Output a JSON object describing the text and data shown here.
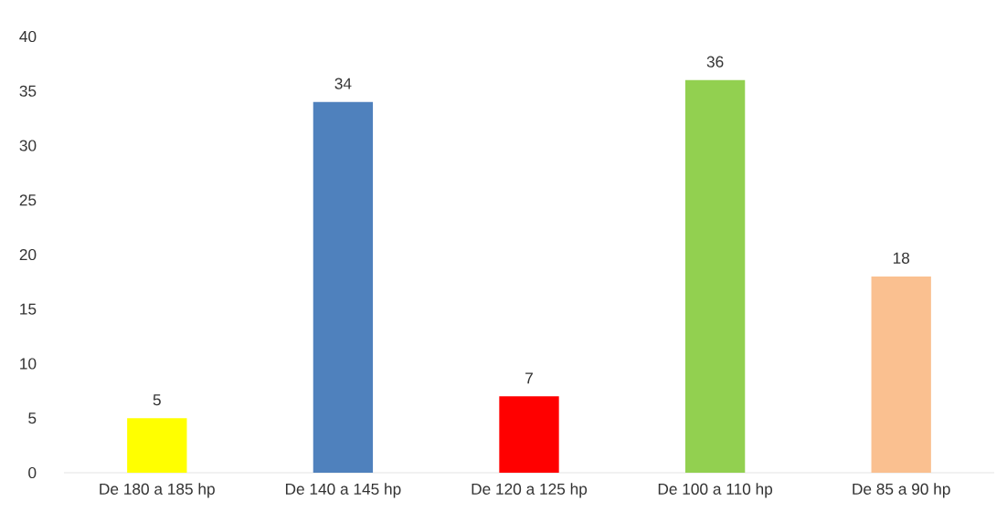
{
  "chart_data": {
    "type": "bar",
    "categories": [
      "De 180 a 185 hp",
      "De 140 a 145 hp",
      "De 120 a 125 hp",
      "De 100 a 110 hp",
      "De 85 a 90 hp"
    ],
    "values": [
      5,
      34,
      7,
      36,
      18
    ],
    "colors": [
      "#ffff00",
      "#4f81bd",
      "#ff0000",
      "#92d050",
      "#fac090"
    ],
    "ylim": [
      0,
      40
    ],
    "yticks": [
      0,
      5,
      10,
      15,
      20,
      25,
      30,
      35,
      40
    ],
    "data_labels": true
  }
}
